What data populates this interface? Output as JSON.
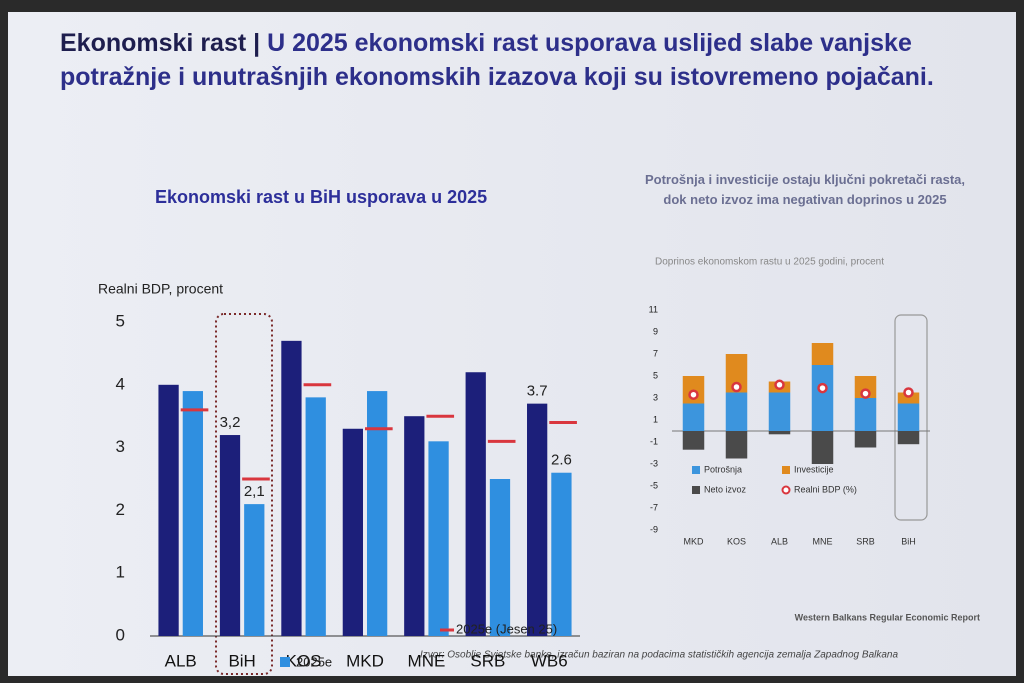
{
  "slide": {
    "title_lead": "Ekonomski rast |",
    "title_rest": "U 2025 ekonomski rast usporava uslijed slabe vanjske potražnje i unutrašnjih ekonomskih izazova koji su istovremeno pojačani.",
    "source": "Izvor: Osoblje Svjetske banke, izračun baziran na podacima statističkih agencija zemalja Zapadnog Balkana",
    "footer": "Western Balkans Regular Economic Report"
  },
  "chart_data": [
    {
      "type": "bar",
      "title": "Ekonomski rast u BiH usporava u 2025",
      "y_label": "Realni BDP, procent",
      "categories": [
        "ALB",
        "BiH",
        "KOS",
        "MKD",
        "MNE",
        "SRB",
        "WB6"
      ],
      "series": [
        {
          "color": "#1c1f7a",
          "values": [
            4.0,
            3.2,
            4.7,
            3.3,
            3.5,
            4.2,
            3.7
          ],
          "value_labels": [
            null,
            "3,2",
            null,
            null,
            null,
            null,
            "3.7"
          ]
        },
        {
          "name": "2025e",
          "color": "#2f8fe0",
          "values": [
            3.9,
            2.1,
            3.8,
            3.9,
            3.1,
            2.5,
            2.6
          ],
          "value_labels": [
            null,
            "2,1",
            null,
            null,
            null,
            null,
            "2.6"
          ]
        },
        {
          "name": "2025e (Jesen 25)",
          "color": "#d9363e",
          "mark": "dash",
          "values": [
            3.6,
            2.5,
            4.0,
            3.3,
            3.5,
            3.1,
            3.4
          ]
        }
      ],
      "ylim": [
        0,
        5
      ],
      "yticks": [
        0,
        1,
        2,
        3,
        4,
        5
      ],
      "grid": false,
      "legend": "bottom"
    },
    {
      "type": "stacked_bar",
      "title": "Potrošnja i investicije ostaju ključni pokretači rasta, dok neto izvoz ima negativan doprinos u 2025",
      "subtitle": "Doprinos ekonomskom rastu u 2025 godini, procent",
      "categories": [
        "MKD",
        "KOS",
        "ALB",
        "MNE",
        "SRB",
        "BiH"
      ],
      "series": [
        {
          "name": "Potrošnja",
          "color": "#3c95dd",
          "values": [
            2.5,
            3.5,
            3.5,
            6.0,
            3.0,
            2.5
          ]
        },
        {
          "name": "Investicije",
          "color": "#e08a1e",
          "values": [
            2.5,
            3.5,
            1.0,
            2.0,
            2.0,
            1.0
          ]
        },
        {
          "name": "Neto izvoz",
          "color": "#4a4a4a",
          "values": [
            -1.7,
            -2.5,
            -0.3,
            -3.0,
            -1.5,
            -1.2
          ]
        },
        {
          "name": "Realni BDP (%)",
          "color": "#d9363e",
          "mark": "circle",
          "values": [
            3.3,
            4.0,
            4.2,
            3.9,
            3.4,
            3.5
          ]
        }
      ],
      "ylim": [
        -9,
        11
      ],
      "yticks": [
        -9,
        -7,
        -5,
        -3,
        -1,
        1,
        3,
        5,
        7,
        9,
        11
      ],
      "grid": false,
      "legend": "lower left"
    }
  ]
}
